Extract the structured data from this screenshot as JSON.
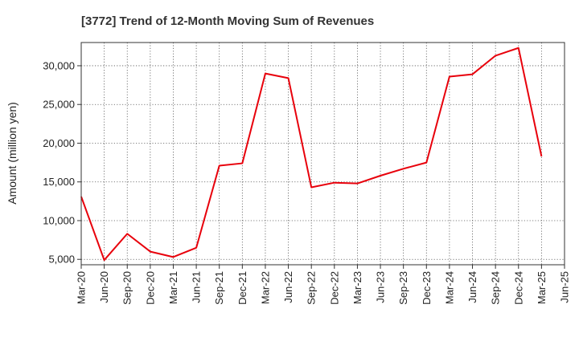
{
  "chart_data": {
    "type": "line",
    "title": "[3772]  Trend of 12-Month Moving Sum of Revenues",
    "xlabel": "",
    "ylabel": "Amount (million yen)",
    "categories": [
      "Mar-20",
      "Jun-20",
      "Sep-20",
      "Dec-20",
      "Mar-21",
      "Jun-21",
      "Sep-21",
      "Dec-21",
      "Mar-22",
      "Jun-22",
      "Sep-22",
      "Dec-22",
      "Mar-23",
      "Jun-23",
      "Sep-23",
      "Dec-23",
      "Mar-24",
      "Jun-24",
      "Sep-24",
      "Dec-24",
      "Mar-25",
      "Jun-25"
    ],
    "series": [
      {
        "color": "#e8000b",
        "values": [
          13100,
          4900,
          8300,
          6000,
          5300,
          6500,
          17100,
          17400,
          29000,
          28400,
          14300,
          14900,
          14800,
          15800,
          16700,
          17500,
          28600,
          28900,
          31300,
          32300,
          18300,
          null
        ]
      }
    ],
    "yticks": [
      5000,
      10000,
      15000,
      20000,
      25000,
      30000
    ],
    "ytick_labels": [
      "5,000",
      "10,000",
      "15,000",
      "20,000",
      "25,000",
      "30,000"
    ],
    "ylim": [
      4300,
      33000
    ],
    "grid": true,
    "grid_style": "dotted",
    "legend": "none"
  }
}
